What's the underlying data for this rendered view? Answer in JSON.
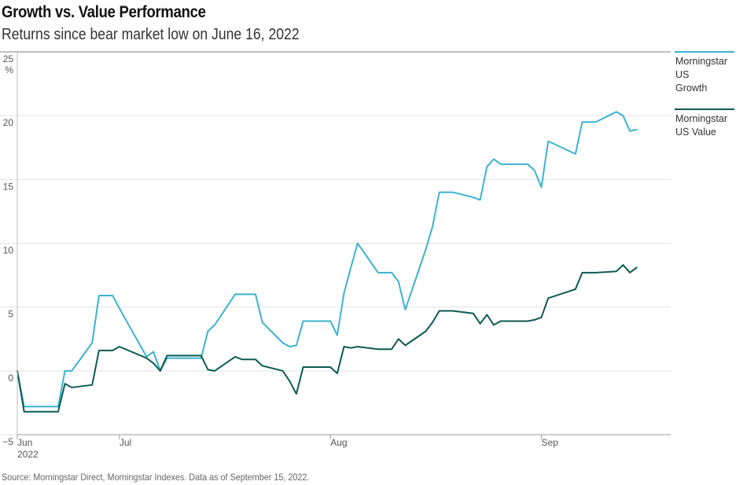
{
  "chart_data": {
    "type": "line",
    "title": "Growth vs. Value Performance",
    "subtitle": "Returns since bear market low on June 16, 2022",
    "ylabel": "",
    "y_unit": "%",
    "ylim": [
      -5,
      25
    ],
    "yticks": [
      "25",
      "20",
      "15",
      "10",
      "5",
      "0",
      "−5"
    ],
    "y_tick_values": [
      25,
      20,
      15,
      10,
      5,
      0,
      -5
    ],
    "xlim": [
      "2022-06-16",
      "2022-09-15"
    ],
    "x_tick_labels": [
      {
        "label": "Jun",
        "sublabel": "2022",
        "date": "2022-06-16"
      },
      {
        "label": "Jul",
        "sublabel": "",
        "date": "2022-07-01"
      },
      {
        "label": "Aug",
        "sublabel": "",
        "date": "2022-08-01"
      },
      {
        "label": "Sep",
        "sublabel": "",
        "date": "2022-09-01"
      }
    ],
    "grid": true,
    "legend_position": "right",
    "series": [
      {
        "name": "Morningstar US Growth",
        "legend_lines": [
          "Morningstar",
          "US",
          "Growth"
        ],
        "color": "#3bb3cf",
        "points": [
          [
            "2022-06-16",
            0.0
          ],
          [
            "2022-06-17",
            -2.8
          ],
          [
            "2022-06-21",
            -2.8
          ],
          [
            "2022-06-22",
            -2.8
          ],
          [
            "2022-06-23",
            0.0
          ],
          [
            "2022-06-24",
            0.0
          ],
          [
            "2022-06-27",
            2.2
          ],
          [
            "2022-06-28",
            5.9
          ],
          [
            "2022-06-29",
            5.9
          ],
          [
            "2022-06-30",
            5.9
          ],
          [
            "2022-07-01",
            4.9
          ],
          [
            "2022-07-05",
            1.1
          ],
          [
            "2022-07-06",
            1.5
          ],
          [
            "2022-07-07",
            0.0
          ],
          [
            "2022-07-08",
            1.0
          ],
          [
            "2022-07-11",
            1.0
          ],
          [
            "2022-07-12",
            1.0
          ],
          [
            "2022-07-13",
            1.0
          ],
          [
            "2022-07-14",
            3.1
          ],
          [
            "2022-07-15",
            3.6
          ],
          [
            "2022-07-18",
            6.0
          ],
          [
            "2022-07-19",
            6.0
          ],
          [
            "2022-07-20",
            6.0
          ],
          [
            "2022-07-21",
            6.0
          ],
          [
            "2022-07-22",
            3.8
          ],
          [
            "2022-07-25",
            2.2
          ],
          [
            "2022-07-26",
            1.9
          ],
          [
            "2022-07-27",
            2.0
          ],
          [
            "2022-07-28",
            3.9
          ],
          [
            "2022-07-29",
            3.9
          ],
          [
            "2022-08-01",
            3.9
          ],
          [
            "2022-08-02",
            2.8
          ],
          [
            "2022-08-03",
            6.1
          ],
          [
            "2022-08-04",
            8.1
          ],
          [
            "2022-08-05",
            10.0
          ],
          [
            "2022-08-08",
            7.7
          ],
          [
            "2022-08-09",
            7.7
          ],
          [
            "2022-08-10",
            7.7
          ],
          [
            "2022-08-11",
            7.0
          ],
          [
            "2022-08-12",
            4.8
          ],
          [
            "2022-08-15",
            9.5
          ],
          [
            "2022-08-16",
            11.3
          ],
          [
            "2022-08-17",
            14.0
          ],
          [
            "2022-08-18",
            14.0
          ],
          [
            "2022-08-19",
            14.0
          ],
          [
            "2022-08-22",
            13.6
          ],
          [
            "2022-08-23",
            13.4
          ],
          [
            "2022-08-24",
            16.0
          ],
          [
            "2022-08-25",
            16.6
          ],
          [
            "2022-08-26",
            16.2
          ],
          [
            "2022-08-29",
            16.2
          ],
          [
            "2022-08-30",
            16.2
          ],
          [
            "2022-08-31",
            15.7
          ],
          [
            "2022-09-01",
            14.4
          ],
          [
            "2022-09-02",
            18.0
          ],
          [
            "2022-09-06",
            17.0
          ],
          [
            "2022-09-07",
            19.5
          ],
          [
            "2022-09-08",
            19.5
          ],
          [
            "2022-09-09",
            19.5
          ],
          [
            "2022-09-12",
            20.3
          ],
          [
            "2022-09-13",
            20.0
          ],
          [
            "2022-09-14",
            18.8
          ],
          [
            "2022-09-15",
            18.9
          ]
        ]
      },
      {
        "name": "Morningstar US Value",
        "legend_lines": [
          "Morningstar",
          "US Value"
        ],
        "color": "#0c5a54",
        "points": [
          [
            "2022-06-16",
            0.0
          ],
          [
            "2022-06-17",
            -3.2
          ],
          [
            "2022-06-21",
            -3.2
          ],
          [
            "2022-06-22",
            -3.2
          ],
          [
            "2022-06-23",
            -1.0
          ],
          [
            "2022-06-24",
            -1.3
          ],
          [
            "2022-06-27",
            -1.1
          ],
          [
            "2022-06-28",
            1.6
          ],
          [
            "2022-06-29",
            1.6
          ],
          [
            "2022-06-30",
            1.6
          ],
          [
            "2022-07-01",
            1.9
          ],
          [
            "2022-07-05",
            1.0
          ],
          [
            "2022-07-06",
            0.6
          ],
          [
            "2022-07-07",
            0.0
          ],
          [
            "2022-07-08",
            1.2
          ],
          [
            "2022-07-11",
            1.2
          ],
          [
            "2022-07-12",
            1.2
          ],
          [
            "2022-07-13",
            1.2
          ],
          [
            "2022-07-14",
            0.1
          ],
          [
            "2022-07-15",
            0.0
          ],
          [
            "2022-07-18",
            1.1
          ],
          [
            "2022-07-19",
            0.9
          ],
          [
            "2022-07-20",
            0.9
          ],
          [
            "2022-07-21",
            0.9
          ],
          [
            "2022-07-22",
            0.4
          ],
          [
            "2022-07-25",
            0.0
          ],
          [
            "2022-07-26",
            -0.8
          ],
          [
            "2022-07-27",
            -1.8
          ],
          [
            "2022-07-28",
            0.3
          ],
          [
            "2022-07-29",
            0.3
          ],
          [
            "2022-08-01",
            0.3
          ],
          [
            "2022-08-02",
            -0.2
          ],
          [
            "2022-08-03",
            1.9
          ],
          [
            "2022-08-04",
            1.8
          ],
          [
            "2022-08-05",
            1.9
          ],
          [
            "2022-08-08",
            1.7
          ],
          [
            "2022-08-09",
            1.7
          ],
          [
            "2022-08-10",
            1.7
          ],
          [
            "2022-08-11",
            2.5
          ],
          [
            "2022-08-12",
            2.0
          ],
          [
            "2022-08-15",
            3.1
          ],
          [
            "2022-08-16",
            3.8
          ],
          [
            "2022-08-17",
            4.7
          ],
          [
            "2022-08-18",
            4.7
          ],
          [
            "2022-08-19",
            4.7
          ],
          [
            "2022-08-22",
            4.5
          ],
          [
            "2022-08-23",
            3.7
          ],
          [
            "2022-08-24",
            4.4
          ],
          [
            "2022-08-25",
            3.6
          ],
          [
            "2022-08-26",
            3.9
          ],
          [
            "2022-08-29",
            3.9
          ],
          [
            "2022-08-30",
            3.9
          ],
          [
            "2022-08-31",
            4.0
          ],
          [
            "2022-09-01",
            4.2
          ],
          [
            "2022-09-02",
            5.7
          ],
          [
            "2022-09-06",
            6.4
          ],
          [
            "2022-09-07",
            7.7
          ],
          [
            "2022-09-08",
            7.7
          ],
          [
            "2022-09-09",
            7.7
          ],
          [
            "2022-09-12",
            7.8
          ],
          [
            "2022-09-13",
            8.3
          ],
          [
            "2022-09-14",
            7.7
          ],
          [
            "2022-09-15",
            8.1
          ]
        ]
      }
    ]
  },
  "source_note": "Source: Morningstar Direct, Morningstar Indexes. Data as of September 15, 2022."
}
